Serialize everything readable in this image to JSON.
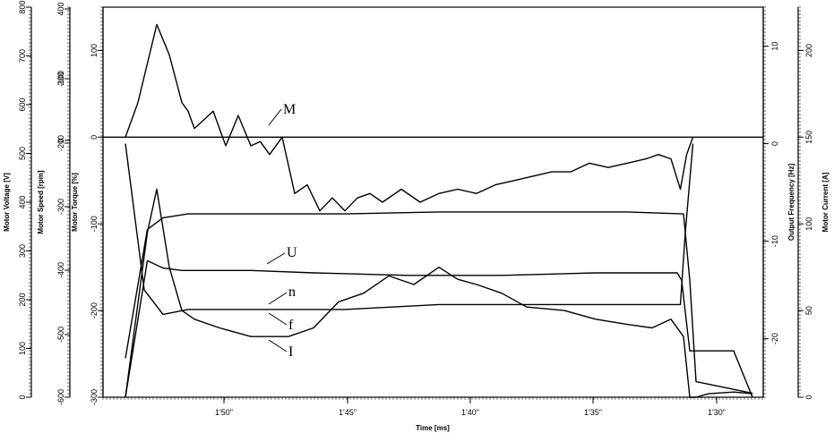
{
  "chart_data": {
    "type": "line",
    "xlabel": "Time [ms]",
    "x_ticks": [
      "1'50\"",
      "1'45\"",
      "1'40\"",
      "1'35\"",
      "1'30\""
    ],
    "axes": {
      "motor_voltage": {
        "label": "Motor Voltage [V]",
        "ticks": [
          "0",
          "100",
          "200",
          "300",
          "400",
          "500",
          "600",
          "700",
          "800"
        ],
        "range": [
          0,
          800
        ]
      },
      "motor_speed": {
        "label": "Motor Speed [rpm]",
        "ticks": [
          "-600",
          "-500",
          "-400",
          "-300",
          "-200",
          "-100",
          "0",
          "200",
          "400"
        ],
        "range": [
          -600,
          400
        ]
      },
      "motor_torque": {
        "label": "Motor Torque [%]",
        "ticks": [
          "-300",
          "-200",
          "-100",
          "0",
          "100"
        ],
        "range": [
          -300,
          150
        ]
      },
      "output_frequency": {
        "label": "Output Frequency [Hz]",
        "ticks": [
          "10",
          "0",
          "-10",
          "-20"
        ],
        "range": [
          -26,
          14
        ]
      },
      "motor_current": {
        "label": "Motor Current [A]",
        "ticks": [
          "0",
          "50",
          "100",
          "150",
          "200"
        ],
        "range": [
          0,
          225
        ]
      }
    },
    "zero_line": {
      "axis": "motor_torque",
      "value": 0
    },
    "series": [
      {
        "name": "M",
        "axis": "motor_torque",
        "x": [
          0,
          0.02,
          0.05,
          0.07,
          0.09,
          0.1,
          0.11,
          0.125,
          0.14,
          0.16,
          0.18,
          0.2,
          0.215,
          0.23,
          0.25,
          0.27,
          0.29,
          0.31,
          0.33,
          0.35,
          0.37,
          0.39,
          0.41,
          0.44,
          0.47,
          0.5,
          0.53,
          0.56,
          0.59,
          0.62,
          0.65,
          0.68,
          0.71,
          0.74,
          0.77,
          0.8,
          0.83,
          0.85,
          0.87,
          0.885,
          0.895,
          0.905
        ],
        "values": [
          0,
          40,
          130,
          95,
          40,
          30,
          10,
          20,
          30,
          -10,
          25,
          -10,
          -5,
          -20,
          0,
          -65,
          -55,
          -85,
          -70,
          -85,
          -70,
          -65,
          -75,
          -60,
          -75,
          -65,
          -60,
          -65,
          -55,
          -50,
          -45,
          -40,
          -40,
          -30,
          -35,
          -30,
          -25,
          -20,
          -25,
          -60,
          -20,
          0
        ]
      },
      {
        "name": "U",
        "axis": "motor_voltage",
        "x": [
          0,
          0.035,
          0.06,
          0.09,
          0.12,
          0.2,
          0.3,
          0.45,
          0.6,
          0.75,
          0.88,
          0.887,
          0.9,
          0.93,
          0.97,
          1.0
        ],
        "values": [
          0,
          280,
          265,
          260,
          260,
          260,
          255,
          250,
          250,
          255,
          255,
          240,
          95,
          95,
          95,
          0
        ]
      },
      {
        "name": "n",
        "axis": "motor_speed",
        "x": [
          0,
          0.035,
          0.06,
          0.1,
          0.2,
          0.35,
          0.5,
          0.65,
          0.8,
          0.89,
          0.9,
          0.91,
          1.0
        ],
        "values": [
          -500,
          -170,
          -140,
          -130,
          -130,
          -130,
          -125,
          -125,
          -125,
          -130,
          -300,
          -560,
          -590
        ]
      },
      {
        "name": "f",
        "axis": "output_frequency",
        "x": [
          0,
          0.03,
          0.06,
          0.1,
          0.2,
          0.35,
          0.5,
          0.65,
          0.8,
          0.885,
          0.893,
          0.905
        ],
        "values": [
          0,
          -15,
          -17.5,
          -17,
          -17,
          -17,
          -16.5,
          -16.5,
          -16.5,
          -16.5,
          -9,
          0
        ]
      },
      {
        "name": "I",
        "axis": "motor_current",
        "x": [
          0,
          0.035,
          0.05,
          0.07,
          0.09,
          0.11,
          0.15,
          0.2,
          0.26,
          0.3,
          0.34,
          0.38,
          0.42,
          0.46,
          0.5,
          0.53,
          0.56,
          0.6,
          0.64,
          0.7,
          0.75,
          0.8,
          0.84,
          0.87,
          0.89,
          0.9,
          0.91,
          0.93,
          0.97,
          1.0
        ],
        "values": [
          0,
          95,
          120,
          75,
          50,
          45,
          40,
          35,
          35,
          40,
          55,
          60,
          70,
          65,
          75,
          68,
          65,
          60,
          52,
          50,
          45,
          42,
          40,
          45,
          35,
          0,
          0,
          2,
          3,
          2
        ]
      }
    ],
    "series_label_text": {
      "M": "M",
      "U": "U",
      "n": "n",
      "f": "f",
      "I": "I"
    }
  }
}
